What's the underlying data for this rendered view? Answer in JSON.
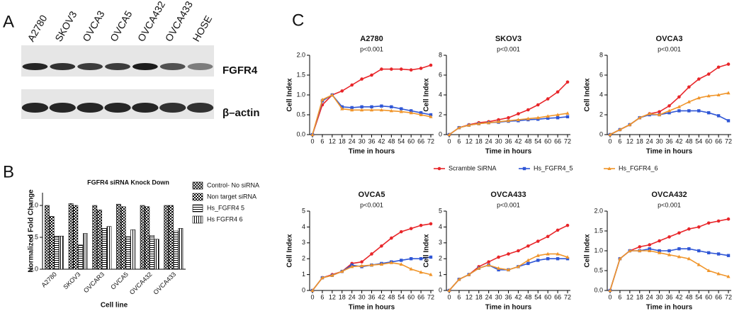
{
  "panel_labels": [
    "A",
    "B",
    "C"
  ],
  "blot": {
    "lanes": [
      "A2780",
      "SKOV3",
      "OVCA3",
      "OVCA5",
      "OVCA432",
      "OVCA433",
      "HOSE"
    ],
    "bands": [
      "FGFR4",
      "β–actin"
    ]
  },
  "chart_data": [
    {
      "type": "bar",
      "title": "FGFR4 siRNA Knock Down",
      "x_label": "Cell line",
      "y_label": "Normalized Fold Change",
      "categories": [
        "A2780",
        "SKOV3",
        "OVCAR3",
        "OVCA5",
        "OVCA432",
        "OVCA433"
      ],
      "series": [
        {
          "name": "Control- No siRNA",
          "pattern": "crosshatch",
          "values": [
            1.0,
            1.03,
            1.0,
            1.02,
            1.0,
            1.0
          ]
        },
        {
          "name": "Non target siRNA",
          "pattern": "checker",
          "values": [
            0.83,
            1.0,
            0.93,
            0.98,
            0.98,
            1.0
          ]
        },
        {
          "name": "Hs_FGFR4 5",
          "pattern": "horizontal",
          "values": [
            0.52,
            0.38,
            0.64,
            0.51,
            0.53,
            0.6
          ]
        },
        {
          "name": "Hs FGFR4 6",
          "pattern": "vertical",
          "values": [
            0.52,
            0.56,
            0.67,
            0.62,
            0.47,
            0.64
          ]
        }
      ],
      "ylim": [
        0,
        1.2
      ],
      "yticks": [
        {
          "value": 0,
          "label": "0.0"
        },
        {
          "value": 0.5,
          "label": "0.5"
        },
        {
          "value": 1,
          "label": "1.0"
        }
      ]
    },
    {
      "type": "line",
      "title": "A2780",
      "subtitle": "p<0.001",
      "x_label": "Time in hours",
      "y_label": "Cell Index",
      "x": [
        0,
        6,
        12,
        18,
        24,
        30,
        36,
        42,
        48,
        54,
        60,
        66,
        72
      ],
      "xlim": [
        0,
        72
      ],
      "xticks": [
        0,
        6,
        12,
        18,
        24,
        30,
        36,
        42,
        48,
        54,
        60,
        66,
        72
      ],
      "ylim": [
        0,
        2
      ],
      "yticks": [
        {
          "value": 0,
          "label": "0.0"
        },
        {
          "value": 0.5,
          "label": "0.5"
        },
        {
          "value": 1,
          "label": "1.0"
        },
        {
          "value": 1.5,
          "label": "1.5"
        },
        {
          "value": 2,
          "label": "2.0"
        }
      ],
      "series": [
        {
          "name": "Scramble SiRNA",
          "color": "#e8262a",
          "marker": "circle",
          "values": [
            0,
            0.75,
            1.0,
            1.1,
            1.25,
            1.4,
            1.5,
            1.65,
            1.65,
            1.65,
            1.63,
            1.67,
            1.75
          ]
        },
        {
          "name": "Hs_FGFR4_5",
          "color": "#2f56d6",
          "marker": "square",
          "values": [
            0,
            0.85,
            1.0,
            0.7,
            0.68,
            0.7,
            0.7,
            0.72,
            0.7,
            0.65,
            0.6,
            0.55,
            0.5
          ]
        },
        {
          "name": "Hs_FGFR4_6",
          "color": "#f0952a",
          "marker": "triangle",
          "values": [
            0,
            0.88,
            1.0,
            0.65,
            0.62,
            0.62,
            0.62,
            0.62,
            0.6,
            0.58,
            0.55,
            0.5,
            0.45
          ]
        }
      ]
    },
    {
      "type": "line",
      "title": "SKOV3",
      "subtitle": "p<0.001",
      "x_label": "Time in hours",
      "y_label": "Cell Index",
      "x": [
        0,
        6,
        12,
        18,
        24,
        30,
        36,
        42,
        48,
        54,
        60,
        66,
        72
      ],
      "xlim": [
        0,
        72
      ],
      "xticks": [
        0,
        6,
        12,
        18,
        24,
        30,
        36,
        42,
        48,
        54,
        60,
        66,
        72
      ],
      "ylim": [
        0,
        8
      ],
      "yticks": [
        0,
        2,
        4,
        6,
        8
      ],
      "series": [
        {
          "name": "Scramble SiRNA",
          "color": "#e8262a",
          "marker": "circle",
          "values": [
            0,
            0.7,
            1.0,
            1.2,
            1.3,
            1.5,
            1.7,
            2.1,
            2.5,
            3.0,
            3.6,
            4.3,
            5.3
          ]
        },
        {
          "name": "Hs_FGFR4_5",
          "color": "#2f56d6",
          "marker": "square",
          "values": [
            0,
            0.7,
            0.95,
            1.1,
            1.2,
            1.25,
            1.35,
            1.4,
            1.5,
            1.55,
            1.65,
            1.7,
            1.8
          ]
        },
        {
          "name": "Hs_FGFR4_6",
          "color": "#f0952a",
          "marker": "triangle",
          "values": [
            0,
            0.7,
            0.95,
            1.1,
            1.2,
            1.3,
            1.4,
            1.5,
            1.6,
            1.7,
            1.85,
            2.0,
            2.15
          ]
        }
      ]
    },
    {
      "type": "line",
      "title": "OVCA3",
      "subtitle": "p<0.001",
      "x_label": "Time in hours",
      "y_label": "Cell Index",
      "x": [
        0,
        6,
        12,
        18,
        24,
        30,
        36,
        42,
        48,
        54,
        60,
        66,
        72
      ],
      "xlim": [
        0,
        72
      ],
      "xticks": [
        0,
        6,
        12,
        18,
        24,
        30,
        36,
        42,
        48,
        54,
        60,
        66,
        72
      ],
      "ylim": [
        0,
        8
      ],
      "yticks": [
        0,
        2,
        4,
        6,
        8
      ],
      "series": [
        {
          "name": "Scramble SiRNA",
          "color": "#e8262a",
          "marker": "circle",
          "values": [
            0,
            0.5,
            1.0,
            1.7,
            2.1,
            2.3,
            2.9,
            3.8,
            4.8,
            5.6,
            6.1,
            6.8,
            7.1
          ]
        },
        {
          "name": "Hs_FGFR4_5",
          "color": "#2f56d6",
          "marker": "square",
          "values": [
            0,
            0.5,
            1.0,
            1.7,
            2.0,
            2.0,
            2.2,
            2.4,
            2.4,
            2.4,
            2.2,
            1.9,
            1.4
          ]
        },
        {
          "name": "Hs_FGFR4_6",
          "color": "#f0952a",
          "marker": "triangle",
          "values": [
            0,
            0.5,
            1.0,
            1.7,
            2.1,
            2.0,
            2.4,
            2.8,
            3.3,
            3.7,
            3.9,
            4.0,
            4.2
          ]
        }
      ]
    },
    {
      "type": "line",
      "title": "OVCA5",
      "subtitle": "p<0.001",
      "x_label": "Time in hours",
      "y_label": "Cell Index",
      "x": [
        0,
        6,
        12,
        18,
        24,
        30,
        36,
        42,
        48,
        54,
        60,
        66,
        72
      ],
      "xlim": [
        0,
        72
      ],
      "xticks": [
        0,
        6,
        12,
        18,
        24,
        30,
        36,
        42,
        48,
        54,
        60,
        66,
        72
      ],
      "ylim": [
        0,
        5
      ],
      "yticks": [
        0,
        1,
        2,
        3,
        4,
        5
      ],
      "series": [
        {
          "name": "Scramble SiRNA",
          "color": "#e8262a",
          "marker": "circle",
          "values": [
            0,
            0.8,
            1.0,
            1.2,
            1.7,
            1.8,
            2.3,
            2.8,
            3.3,
            3.7,
            3.9,
            4.1,
            4.2
          ]
        },
        {
          "name": "Hs_FGFR4_5",
          "color": "#2f56d6",
          "marker": "square",
          "values": [
            0,
            0.8,
            0.95,
            1.2,
            1.6,
            1.5,
            1.6,
            1.7,
            1.8,
            1.9,
            2.0,
            2.0,
            2.1
          ]
        },
        {
          "name": "Hs_FGFR4_6",
          "color": "#f0952a",
          "marker": "triangle",
          "values": [
            0,
            0.8,
            0.95,
            1.2,
            1.5,
            1.55,
            1.6,
            1.65,
            1.75,
            1.65,
            1.35,
            1.15,
            1.0
          ]
        }
      ]
    },
    {
      "type": "line",
      "title": "OVCA433",
      "subtitle": "p<0.001",
      "x_label": "Time in hours",
      "y_label": "Cell Index",
      "x": [
        0,
        6,
        12,
        18,
        24,
        30,
        36,
        42,
        48,
        54,
        60,
        66,
        72
      ],
      "xlim": [
        0,
        72
      ],
      "xticks": [
        0,
        6,
        12,
        18,
        24,
        30,
        36,
        42,
        48,
        54,
        60,
        66,
        72
      ],
      "ylim": [
        0,
        5
      ],
      "yticks": [
        0,
        1,
        2,
        3,
        4,
        5
      ],
      "series": [
        {
          "name": "Scramble SiRNA",
          "color": "#e8262a",
          "marker": "circle",
          "values": [
            0,
            0.7,
            1.0,
            1.5,
            1.8,
            2.1,
            2.3,
            2.5,
            2.8,
            3.1,
            3.4,
            3.8,
            4.1
          ]
        },
        {
          "name": "Hs_FGFR4_5",
          "color": "#2f56d6",
          "marker": "square",
          "values": [
            0,
            0.7,
            1.0,
            1.4,
            1.6,
            1.3,
            1.3,
            1.5,
            1.7,
            1.9,
            2.0,
            2.0,
            2.0
          ]
        },
        {
          "name": "Hs_FGFR4_6",
          "color": "#f0952a",
          "marker": "triangle",
          "values": [
            0,
            0.7,
            1.0,
            1.4,
            1.6,
            1.4,
            1.3,
            1.5,
            1.9,
            2.2,
            2.3,
            2.3,
            2.1
          ]
        }
      ]
    },
    {
      "type": "line",
      "title": "OVCA432",
      "subtitle": "p<0.001",
      "x_label": "Time in hours",
      "y_label": "Cell Index",
      "x": [
        0,
        6,
        12,
        18,
        24,
        30,
        36,
        42,
        48,
        54,
        60,
        66,
        72
      ],
      "xlim": [
        0,
        72
      ],
      "xticks": [
        0,
        6,
        12,
        18,
        24,
        30,
        36,
        42,
        48,
        54,
        60,
        66,
        72
      ],
      "ylim": [
        0,
        2
      ],
      "yticks": [
        {
          "value": 0,
          "label": "0.0"
        },
        {
          "value": 0.5,
          "label": "0.5"
        },
        {
          "value": 1,
          "label": "1.0"
        },
        {
          "value": 1.5,
          "label": "1.5"
        },
        {
          "value": 2,
          "label": "2.0"
        }
      ],
      "series": [
        {
          "name": "Scramble SiRNA",
          "color": "#e8262a",
          "marker": "circle",
          "values": [
            0,
            0.8,
            1.0,
            1.1,
            1.15,
            1.25,
            1.35,
            1.45,
            1.55,
            1.6,
            1.7,
            1.75,
            1.8
          ]
        },
        {
          "name": "Hs_FGFR4_5",
          "color": "#2f56d6",
          "marker": "square",
          "values": [
            0,
            0.8,
            1.0,
            1.0,
            1.05,
            1.0,
            1.0,
            1.05,
            1.05,
            1.0,
            0.95,
            0.92,
            0.88
          ]
        },
        {
          "name": "Hs_FGFR4_6",
          "color": "#f0952a",
          "marker": "triangle",
          "values": [
            0,
            0.8,
            1.0,
            1.0,
            1.0,
            0.95,
            0.9,
            0.85,
            0.8,
            0.65,
            0.5,
            0.42,
            0.35
          ]
        }
      ]
    }
  ]
}
